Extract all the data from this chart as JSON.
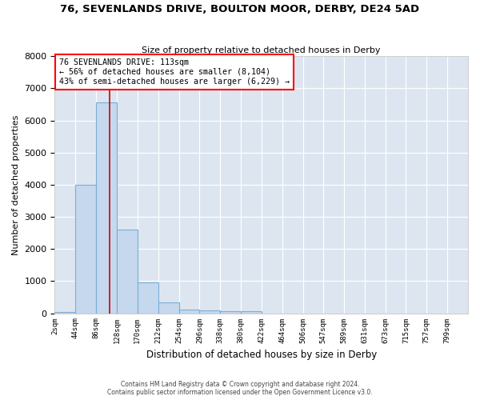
{
  "title": "76, SEVENLANDS DRIVE, BOULTON MOOR, DERBY, DE24 5AD",
  "subtitle": "Size of property relative to detached houses in Derby",
  "xlabel": "Distribution of detached houses by size in Derby",
  "ylabel": "Number of detached properties",
  "bin_edges": [
    2,
    44,
    86,
    128,
    170,
    212,
    254,
    296,
    338,
    380,
    422,
    464,
    506,
    547,
    589,
    631,
    673,
    715,
    757,
    799,
    841
  ],
  "bar_heights": [
    50,
    4000,
    6550,
    2600,
    950,
    330,
    120,
    90,
    70,
    60,
    0,
    0,
    0,
    0,
    0,
    0,
    0,
    0,
    0,
    0
  ],
  "bar_color": "#c5d8ed",
  "bar_edgecolor": "#7aaed6",
  "bar_linewidth": 0.8,
  "vline_x": 113,
  "vline_color": "#cc0000",
  "annotation_text": "76 SEVENLANDS DRIVE: 113sqm\n← 56% of detached houses are smaller (8,104)\n43% of semi-detached houses are larger (6,229) →",
  "ylim": [
    0,
    8000
  ],
  "yticks": [
    0,
    1000,
    2000,
    3000,
    4000,
    5000,
    6000,
    7000,
    8000
  ],
  "bg_color": "#dde6f0",
  "grid_color": "#ffffff",
  "footer_line1": "Contains HM Land Registry data © Crown copyright and database right 2024.",
  "footer_line2": "Contains public sector information licensed under the Open Government Licence v3.0."
}
